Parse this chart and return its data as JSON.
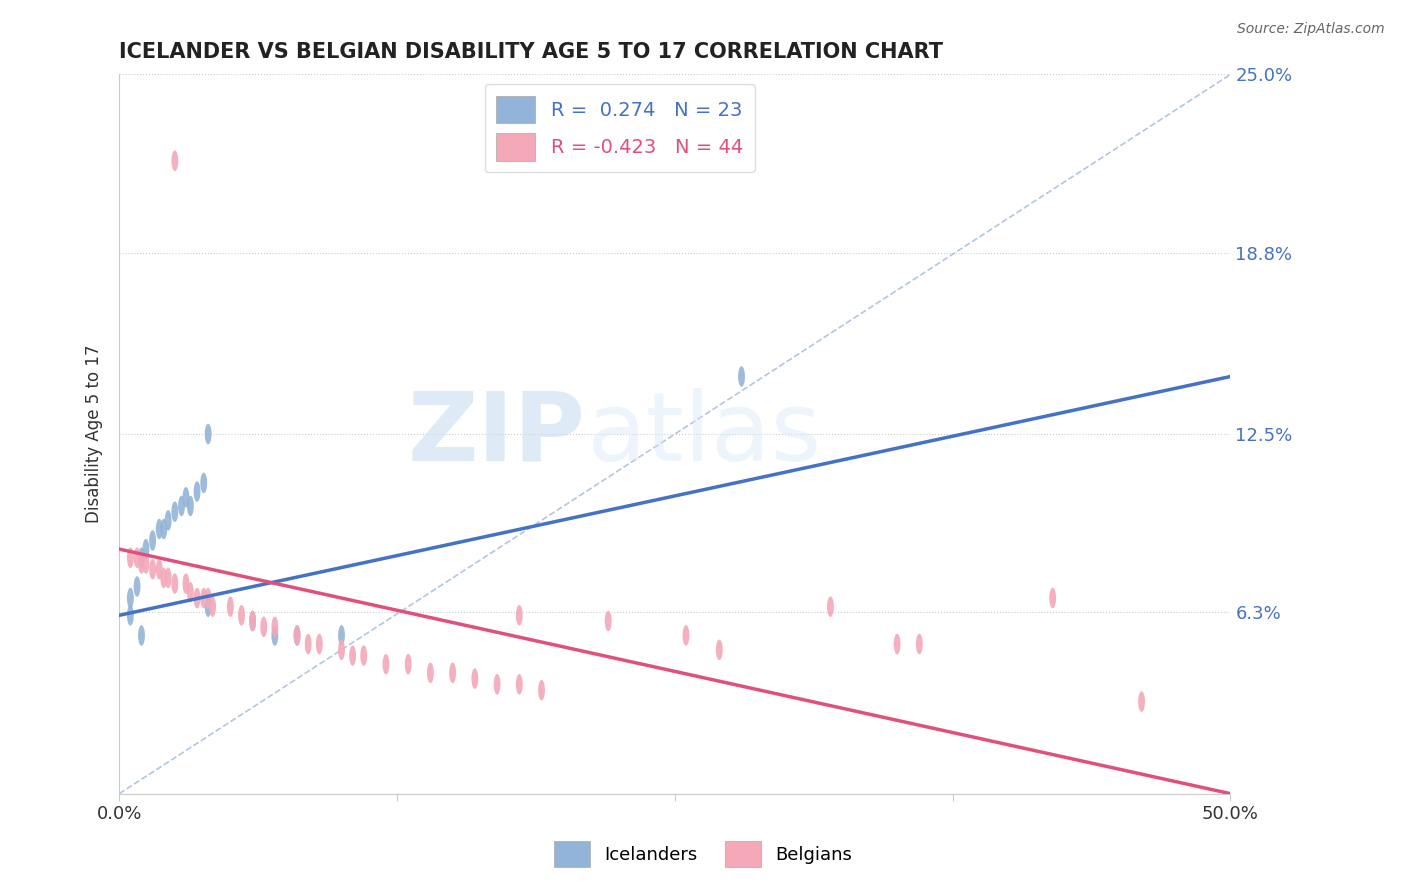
{
  "title": "ICELANDER VS BELGIAN DISABILITY AGE 5 TO 17 CORRELATION CHART",
  "source": "Source: ZipAtlas.com",
  "ylabel": "Disability Age 5 to 17",
  "xlim": [
    0.0,
    0.5
  ],
  "ylim": [
    0.0,
    0.25
  ],
  "yticks": [
    0.0,
    0.063,
    0.125,
    0.188,
    0.25
  ],
  "ytick_labels": [
    "",
    "6.3%",
    "12.5%",
    "18.8%",
    "25.0%"
  ],
  "xticks": [
    0.0,
    0.125,
    0.25,
    0.375,
    0.5
  ],
  "xtick_labels": [
    "0.0%",
    "",
    "",
    "",
    "50.0%"
  ],
  "icelander_R": 0.274,
  "icelander_N": 23,
  "belgian_R": -0.423,
  "belgian_N": 44,
  "icelander_color": "#92b4d8",
  "belgian_color": "#f4a8b8",
  "icelander_line_color": "#4472c4",
  "belgian_line_color": "#e0507a",
  "ref_line_color": "#a0b8d8",
  "background_color": "#ffffff",
  "watermark": "ZIPatlas",
  "watermark_color": "#d0e4f4",
  "icelander_scatter": [
    [
      0.005,
      0.068
    ],
    [
      0.008,
      0.072
    ],
    [
      0.01,
      0.082
    ],
    [
      0.012,
      0.085
    ],
    [
      0.015,
      0.088
    ],
    [
      0.018,
      0.092
    ],
    [
      0.02,
      0.092
    ],
    [
      0.022,
      0.095
    ],
    [
      0.025,
      0.098
    ],
    [
      0.028,
      0.1
    ],
    [
      0.03,
      0.103
    ],
    [
      0.032,
      0.1
    ],
    [
      0.035,
      0.105
    ],
    [
      0.038,
      0.108
    ],
    [
      0.04,
      0.065
    ],
    [
      0.06,
      0.06
    ],
    [
      0.07,
      0.055
    ],
    [
      0.08,
      0.055
    ],
    [
      0.1,
      0.055
    ],
    [
      0.04,
      0.125
    ],
    [
      0.28,
      0.145
    ],
    [
      0.01,
      0.055
    ],
    [
      0.005,
      0.062
    ]
  ],
  "belgian_scatter": [
    [
      0.005,
      0.082
    ],
    [
      0.008,
      0.082
    ],
    [
      0.01,
      0.08
    ],
    [
      0.012,
      0.08
    ],
    [
      0.015,
      0.078
    ],
    [
      0.018,
      0.078
    ],
    [
      0.02,
      0.075
    ],
    [
      0.022,
      0.075
    ],
    [
      0.025,
      0.073
    ],
    [
      0.03,
      0.073
    ],
    [
      0.032,
      0.07
    ],
    [
      0.035,
      0.068
    ],
    [
      0.038,
      0.068
    ],
    [
      0.04,
      0.068
    ],
    [
      0.042,
      0.065
    ],
    [
      0.05,
      0.065
    ],
    [
      0.055,
      0.062
    ],
    [
      0.06,
      0.06
    ],
    [
      0.065,
      0.058
    ],
    [
      0.07,
      0.058
    ],
    [
      0.08,
      0.055
    ],
    [
      0.085,
      0.052
    ],
    [
      0.09,
      0.052
    ],
    [
      0.1,
      0.05
    ],
    [
      0.105,
      0.048
    ],
    [
      0.11,
      0.048
    ],
    [
      0.12,
      0.045
    ],
    [
      0.13,
      0.045
    ],
    [
      0.14,
      0.042
    ],
    [
      0.15,
      0.042
    ],
    [
      0.16,
      0.04
    ],
    [
      0.17,
      0.038
    ],
    [
      0.18,
      0.038
    ],
    [
      0.19,
      0.036
    ],
    [
      0.22,
      0.06
    ],
    [
      0.255,
      0.055
    ],
    [
      0.27,
      0.05
    ],
    [
      0.32,
      0.065
    ],
    [
      0.35,
      0.052
    ],
    [
      0.36,
      0.052
    ],
    [
      0.42,
      0.068
    ],
    [
      0.46,
      0.032
    ],
    [
      0.025,
      0.22
    ],
    [
      0.18,
      0.062
    ]
  ],
  "icelander_line": [
    [
      0.0,
      0.062
    ],
    [
      0.5,
      0.145
    ]
  ],
  "belgian_line": [
    [
      0.0,
      0.085
    ],
    [
      0.5,
      0.0
    ]
  ],
  "ref_line": [
    [
      0.0,
      0.0
    ],
    [
      0.5,
      0.25
    ]
  ]
}
